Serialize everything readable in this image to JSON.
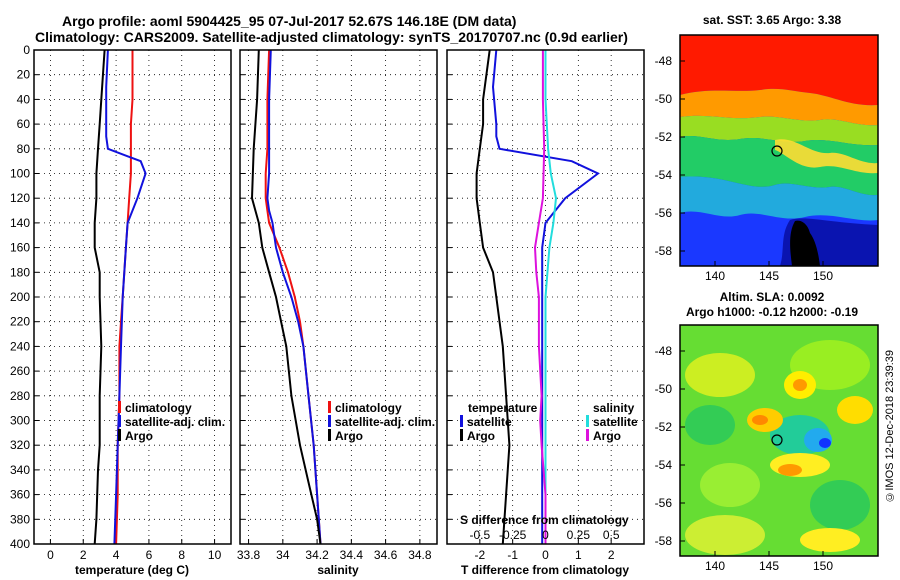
{
  "header": {
    "line1": "Argo profile: aoml 5904425_95 07-Jul-2017 52.67S 146.18E (DM data)",
    "line2": "Climatology: CARS2009. Satellite-adjusted climatology: synTS_20170707.nc (0.9d earlier)"
  },
  "credit": "©IMOS 12-Dec-2018 23:39:39",
  "colors": {
    "climatology": "#ee1111",
    "satellite": "#1111dd",
    "argo": "#000000",
    "sat_diff": "#22dddd",
    "clim_s_diff": "#dd11dd"
  },
  "chart_data": [
    {
      "id": "temperature",
      "type": "line",
      "xlabel": "temperature (deg C)",
      "ylim": [
        400,
        0
      ],
      "xlim": [
        -1,
        11
      ],
      "xticks": [
        0,
        2,
        4,
        6,
        8,
        10
      ],
      "xticklabels": [
        "0",
        "2",
        "4",
        "6",
        "8",
        "10"
      ],
      "yticks": [
        0,
        20,
        40,
        60,
        80,
        100,
        120,
        140,
        160,
        180,
        200,
        220,
        240,
        260,
        280,
        300,
        320,
        340,
        360,
        380,
        400
      ],
      "legend": [
        "climatology",
        "satellite-adj. clim.",
        "Argo"
      ],
      "series": [
        {
          "name": "climatology",
          "color": "climatology",
          "x": [
            5.0,
            5.0,
            4.9,
            4.9,
            4.9,
            4.8,
            4.7,
            4.6,
            4.5,
            4.4,
            4.3,
            4.2,
            4.2,
            4.1,
            4.1,
            4.0
          ],
          "y": [
            0,
            40,
            60,
            80,
            100,
            120,
            140,
            160,
            180,
            200,
            220,
            240,
            280,
            320,
            360,
            400
          ]
        },
        {
          "name": "satellite-adj. clim.",
          "color": "satellite",
          "x": [
            3.5,
            3.4,
            3.4,
            3.4,
            3.5,
            5.5,
            5.8,
            5.3,
            4.7,
            4.6,
            4.4,
            4.3,
            4.2,
            4.1,
            4.0,
            3.9
          ],
          "y": [
            0,
            30,
            60,
            70,
            80,
            90,
            100,
            120,
            140,
            160,
            200,
            240,
            280,
            320,
            360,
            400
          ]
        },
        {
          "name": "Argo",
          "color": "argo",
          "x": [
            3.3,
            3.1,
            3.0,
            2.9,
            2.8,
            2.8,
            2.7,
            2.7,
            3.0,
            3.0,
            3.1,
            3.0,
            3.0,
            2.9,
            2.8,
            2.7
          ],
          "y": [
            0,
            40,
            60,
            80,
            100,
            120,
            140,
            160,
            180,
            200,
            240,
            280,
            320,
            340,
            380,
            400
          ]
        }
      ]
    },
    {
      "id": "salinity",
      "type": "line",
      "xlabel": "salinity",
      "ylim": [
        400,
        0
      ],
      "xlim": [
        33.75,
        34.9
      ],
      "xticks": [
        33.8,
        34.0,
        34.2,
        34.4,
        34.6,
        34.8
      ],
      "xticklabels": [
        "33.8",
        "34",
        "34.2",
        "34.4",
        "34.6",
        "34.8"
      ],
      "yticks": [
        0,
        20,
        40,
        60,
        80,
        100,
        120,
        140,
        160,
        180,
        200,
        220,
        240,
        260,
        280,
        300,
        320,
        340,
        360,
        380,
        400
      ],
      "legend": [
        "climatology",
        "satellite-adj. clim.",
        "Argo"
      ],
      "series": [
        {
          "name": "climatology",
          "color": "climatology",
          "x": [
            33.92,
            33.91,
            33.91,
            33.9,
            33.9,
            33.91,
            33.92,
            33.98,
            34.03,
            34.07,
            34.1,
            34.12,
            34.15,
            34.18,
            34.2,
            34.22
          ],
          "y": [
            0,
            40,
            80,
            100,
            120,
            130,
            140,
            160,
            180,
            200,
            220,
            240,
            280,
            320,
            360,
            400
          ]
        },
        {
          "name": "satellite-adj. clim.",
          "color": "satellite",
          "x": [
            33.93,
            33.92,
            33.92,
            33.92,
            33.91,
            33.92,
            33.94,
            33.96,
            34.0,
            34.05,
            34.09,
            34.12,
            34.15,
            34.18,
            34.2,
            34.22
          ],
          "y": [
            0,
            40,
            80,
            100,
            120,
            130,
            140,
            160,
            180,
            200,
            220,
            240,
            280,
            320,
            360,
            400
          ]
        },
        {
          "name": "Argo",
          "color": "argo",
          "x": [
            33.86,
            33.85,
            33.83,
            33.82,
            33.86,
            33.88,
            33.92,
            33.96,
            33.99,
            34.02,
            34.05,
            34.1,
            34.15,
            34.2,
            34.22
          ],
          "y": [
            0,
            40,
            80,
            120,
            140,
            160,
            180,
            200,
            220,
            240,
            280,
            320,
            350,
            380,
            400
          ]
        }
      ]
    },
    {
      "id": "difference",
      "type": "line",
      "xlabel": "T difference from climatology",
      "xlabel_top": "S difference from climatology",
      "ylim": [
        400,
        0
      ],
      "xlim": [
        -3,
        3
      ],
      "xticks": [
        -2,
        -1,
        0,
        1,
        2
      ],
      "xticklabels": [
        "-2",
        "-1",
        "0",
        "1",
        "2"
      ],
      "xticks_top": [
        -0.5,
        -0.25,
        0,
        0.25,
        0.5
      ],
      "xticklabels_top": [
        "-0.5",
        "-0.25",
        "0",
        "0.25",
        "0.5"
      ],
      "yticks": [
        0,
        20,
        40,
        60,
        80,
        100,
        120,
        140,
        160,
        180,
        200,
        220,
        240,
        260,
        280,
        300,
        320,
        340,
        360,
        380,
        400
      ],
      "legend_temperature": {
        "title": "temperature",
        "items": [
          "satellite",
          "Argo"
        ]
      },
      "legend_salinity": {
        "title": "salinity",
        "items": [
          "satellite",
          "Argo"
        ]
      },
      "series": [
        {
          "name": "T satellite",
          "color": "satellite",
          "x": [
            -1.5,
            -1.6,
            -1.5,
            -1.5,
            -1.4,
            0.8,
            1.6,
            0.6,
            0.0,
            -0.1,
            -0.1,
            -0.1,
            -0.1,
            -0.1,
            -0.1
          ],
          "y": [
            0,
            30,
            60,
            70,
            80,
            90,
            100,
            120,
            140,
            160,
            200,
            240,
            280,
            320,
            400
          ]
        },
        {
          "name": "T Argo",
          "color": "argo",
          "x": [
            -1.7,
            -1.9,
            -1.9,
            -2.0,
            -2.1,
            -2.1,
            -2.0,
            -1.9,
            -1.6,
            -1.5,
            -1.3,
            -1.2,
            -1.1,
            -1.2,
            -1.3
          ],
          "y": [
            0,
            40,
            60,
            80,
            100,
            120,
            140,
            160,
            180,
            200,
            240,
            280,
            320,
            360,
            400
          ]
        },
        {
          "name": "S satellite",
          "color": "sat_diff",
          "x": [
            0.0,
            0.0,
            0.01,
            0.02,
            0.04,
            0.08,
            0.06,
            0.03,
            0.0,
            0.0,
            0.0,
            0.0,
            0.0
          ],
          "y": [
            0,
            40,
            60,
            80,
            100,
            120,
            140,
            160,
            200,
            240,
            280,
            320,
            400
          ]
        },
        {
          "name": "S Argo",
          "color": "clim_s_diff",
          "x": [
            -0.02,
            -0.02,
            -0.01,
            -0.02,
            -0.05,
            -0.08,
            -0.07,
            -0.05,
            -0.05,
            -0.03,
            -0.04,
            -0.03,
            0.0,
            0.0
          ],
          "y": [
            0,
            40,
            80,
            120,
            140,
            160,
            180,
            200,
            240,
            280,
            300,
            320,
            360,
            400
          ]
        }
      ]
    }
  ],
  "maps": {
    "sst": {
      "title": "sat. SST: 3.65 Argo: 3.38",
      "lat_ticks": [
        "-48",
        "-50",
        "-52",
        "-54",
        "-56",
        "-58"
      ],
      "lon_ticks": [
        "140",
        "145",
        "150"
      ]
    },
    "sla": {
      "title1": "Altim. SLA: 0.0092",
      "title2": "Argo h1000: -0.12 h2000: -0.19",
      "lat_ticks": [
        "-48",
        "-50",
        "-52",
        "-54",
        "-56",
        "-58"
      ],
      "lon_ticks": [
        "140",
        "145",
        "150"
      ]
    }
  }
}
